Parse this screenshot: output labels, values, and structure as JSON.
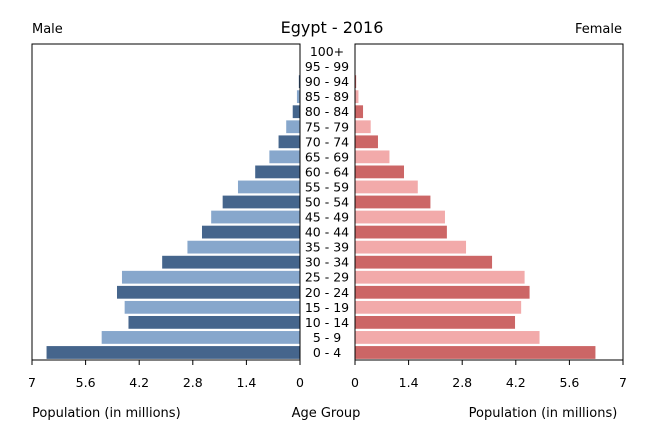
{
  "chart_data": {
    "type": "bar",
    "title": "Egypt - 2016",
    "left_label": "Male",
    "right_label": "Female",
    "xlabel_left": "Population (in millions)",
    "xlabel_center": "Age Group",
    "xlabel_right": "Population (in millions)",
    "xlim": [
      0,
      7
    ],
    "ticks": [
      0,
      1.4,
      2.8,
      4.2,
      5.6,
      7
    ],
    "tick_labels": [
      "0",
      "1.4",
      "2.8",
      "4.2",
      "5.6",
      "7"
    ],
    "categories": [
      "0 - 4",
      "5 - 9",
      "10 - 14",
      "15 - 19",
      "20 - 24",
      "25 - 29",
      "30 - 34",
      "35 - 39",
      "40 - 44",
      "45 - 49",
      "50 - 54",
      "55 - 59",
      "60 - 64",
      "65 - 69",
      "70 - 74",
      "75 - 79",
      "80 - 84",
      "85 - 89",
      "90 - 94",
      "95 - 99",
      "100+"
    ],
    "series": [
      {
        "name": "Male",
        "values": [
          6.62,
          5.18,
          4.48,
          4.58,
          4.78,
          4.65,
          3.6,
          2.94,
          2.56,
          2.32,
          2.02,
          1.62,
          1.17,
          0.8,
          0.56,
          0.36,
          0.19,
          0.08,
          0.03,
          0.01,
          0.005
        ]
      },
      {
        "name": "Female",
        "values": [
          6.28,
          4.82,
          4.18,
          4.34,
          4.56,
          4.43,
          3.58,
          2.9,
          2.4,
          2.35,
          1.97,
          1.64,
          1.28,
          0.9,
          0.6,
          0.41,
          0.21,
          0.09,
          0.03,
          0.01,
          0.005
        ]
      }
    ],
    "colors": {
      "male_dark": "#45658c",
      "male_light": "#87a7cc",
      "female_dark": "#cc6666",
      "female_light": "#f2aaaa"
    },
    "grid": false
  }
}
